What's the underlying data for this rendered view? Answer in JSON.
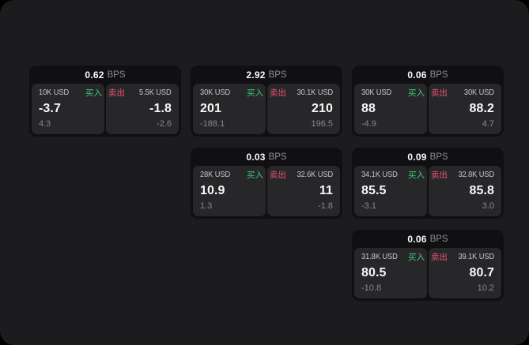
{
  "labels": {
    "bps": "BPS",
    "buy": "买入",
    "sell": "卖出"
  },
  "colors": {
    "outside_bg": "#000000",
    "panel_bg": "#1c1c1e",
    "card_bg": "#101013",
    "tile_bg": "#27272a",
    "buy_green": "#3ab06a",
    "sell_red": "#c94a68"
  },
  "cards": [
    {
      "row": 1,
      "col": 1,
      "spread_bps": "0.62",
      "buy": {
        "size": "10K USD",
        "price": "-3.7",
        "delta": "4.3"
      },
      "sell": {
        "size": "5.5K USD",
        "price": "-1.8",
        "delta": "-2.6"
      }
    },
    {
      "row": 1,
      "col": 2,
      "spread_bps": "2.92",
      "buy": {
        "size": "30K USD",
        "price": "201",
        "delta": "-188.1"
      },
      "sell": {
        "size": "30.1K USD",
        "price": "210",
        "delta": "196.5"
      }
    },
    {
      "row": 1,
      "col": 3,
      "spread_bps": "0.06",
      "buy": {
        "size": "30K USD",
        "price": "88",
        "delta": "-4.9"
      },
      "sell": {
        "size": "30K USD",
        "price": "88.2",
        "delta": "4.7"
      }
    },
    {
      "row": 2,
      "col": 2,
      "spread_bps": "0.03",
      "buy": {
        "size": "28K USD",
        "price": "10.9",
        "delta": "1.3"
      },
      "sell": {
        "size": "32.6K USD",
        "price": "11",
        "delta": "-1.8"
      }
    },
    {
      "row": 2,
      "col": 3,
      "spread_bps": "0.09",
      "buy": {
        "size": "34.1K USD",
        "price": "85.5",
        "delta": "-3.1"
      },
      "sell": {
        "size": "32.8K USD",
        "price": "85.8",
        "delta": "3.0"
      }
    },
    {
      "row": 3,
      "col": 3,
      "spread_bps": "0.06",
      "buy": {
        "size": "31.8K USD",
        "price": "80.5",
        "delta": "-10.8"
      },
      "sell": {
        "size": "39.1K USD",
        "price": "80.7",
        "delta": "10.2"
      }
    }
  ]
}
